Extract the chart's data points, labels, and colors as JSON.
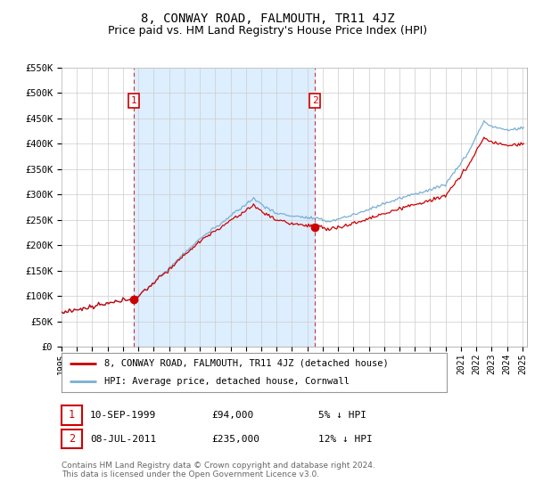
{
  "title": "8, CONWAY ROAD, FALMOUTH, TR11 4JZ",
  "subtitle": "Price paid vs. HM Land Registry's House Price Index (HPI)",
  "ylim": [
    0,
    550000
  ],
  "yticks": [
    0,
    50000,
    100000,
    150000,
    200000,
    250000,
    300000,
    350000,
    400000,
    450000,
    500000,
    550000
  ],
  "ytick_labels": [
    "£0",
    "£50K",
    "£100K",
    "£150K",
    "£200K",
    "£250K",
    "£300K",
    "£350K",
    "£400K",
    "£450K",
    "£500K",
    "£550K"
  ],
  "xlim_start": 1995.0,
  "xlim_end": 2025.3,
  "line_color_property": "#cc0000",
  "line_color_hpi": "#7aafd4",
  "shade_color": "#ddeeff",
  "transaction1": {
    "date": "10-SEP-1999",
    "price": 94000,
    "price_str": "£94,000",
    "pct": "5%",
    "direction": "↓",
    "label": "1",
    "x": 1999.7
  },
  "transaction2": {
    "date": "08-JUL-2011",
    "price": 235000,
    "price_str": "£235,000",
    "pct": "12%",
    "direction": "↓",
    "label": "2",
    "x": 2011.5
  },
  "legend_property": "8, CONWAY ROAD, FALMOUTH, TR11 4JZ (detached house)",
  "legend_hpi": "HPI: Average price, detached house, Cornwall",
  "footer": "Contains HM Land Registry data © Crown copyright and database right 2024.\nThis data is licensed under the Open Government Licence v3.0.",
  "bg_color": "#ffffff",
  "grid_color": "#cccccc",
  "title_fontsize": 10,
  "subtitle_fontsize": 9
}
